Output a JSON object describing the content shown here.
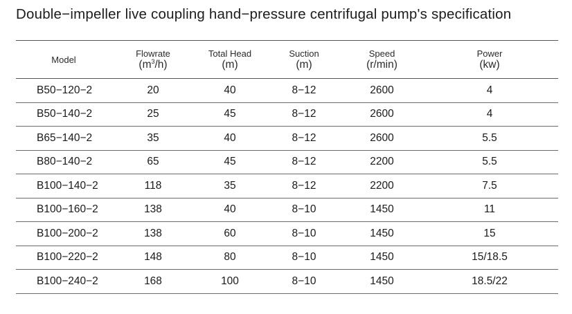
{
  "title": "Double−impeller live coupling hand−pressure centrifugal pump's specification",
  "headers": {
    "model": "Model",
    "flowrate": "Flowrate",
    "flowrate_unit_pre": "(m",
    "flowrate_unit_sup": "3",
    "flowrate_unit_post": "/h)",
    "total_head": "Total Head",
    "total_head_unit": "(m)",
    "suction": "Suction",
    "suction_unit": "(m)",
    "speed": "Speed",
    "speed_unit": "(r/min)",
    "power": "Power",
    "power_unit": "(kw)"
  },
  "rows": [
    {
      "model": "B50−120−2",
      "flowrate": "20",
      "head": "40",
      "suction": "8−12",
      "speed": "2600",
      "power": "4"
    },
    {
      "model": "B50−140−2",
      "flowrate": "25",
      "head": "45",
      "suction": "8−12",
      "speed": "2600",
      "power": "4"
    },
    {
      "model": "B65−140−2",
      "flowrate": "35",
      "head": "40",
      "suction": "8−12",
      "speed": "2600",
      "power": "5.5"
    },
    {
      "model": "B80−140−2",
      "flowrate": "65",
      "head": "45",
      "suction": "8−12",
      "speed": "2200",
      "power": "5.5"
    },
    {
      "model": "B100−140−2",
      "flowrate": "118",
      "head": "35",
      "suction": "8−12",
      "speed": "2200",
      "power": "7.5"
    },
    {
      "model": "B100−160−2",
      "flowrate": "138",
      "head": "40",
      "suction": "8−10",
      "speed": "1450",
      "power": "11"
    },
    {
      "model": "B100−200−2",
      "flowrate": "138",
      "head": "60",
      "suction": "8−10",
      "speed": "1450",
      "power": "15"
    },
    {
      "model": "B100−220−2",
      "flowrate": "148",
      "head": "80",
      "suction": "8−10",
      "speed": "1450",
      "power": "15/18.5"
    },
    {
      "model": "B100−240−2",
      "flowrate": "168",
      "head": "100",
      "suction": "8−10",
      "speed": "1450",
      "power": "18.5/22"
    }
  ]
}
